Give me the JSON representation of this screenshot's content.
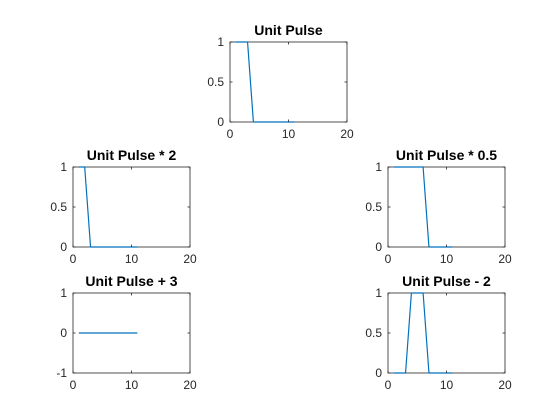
{
  "chart_data": [
    {
      "type": "line",
      "title": "Unit Pulse",
      "xlabel": "",
      "ylabel": "",
      "xlim": [
        0,
        20
      ],
      "ylim": [
        0,
        1
      ],
      "xticks": [
        0,
        10,
        20
      ],
      "xtick_labels": [
        "0",
        "10",
        "20"
      ],
      "yticks": [
        0,
        0.5,
        1
      ],
      "ytick_labels": [
        "0",
        "0.5",
        "1"
      ],
      "grid": false,
      "series": [
        {
          "x": [
            1,
            2,
            3,
            4,
            5,
            6,
            7,
            8,
            9,
            10,
            11
          ],
          "y": [
            1,
            1,
            1,
            0,
            0,
            0,
            0,
            0,
            0,
            0,
            0
          ]
        }
      ]
    },
    {
      "type": "line",
      "title": "Unit Pulse * 2",
      "xlabel": "",
      "ylabel": "",
      "xlim": [
        0,
        20
      ],
      "ylim": [
        0,
        1
      ],
      "xticks": [
        0,
        10,
        20
      ],
      "xtick_labels": [
        "0",
        "10",
        "20"
      ],
      "yticks": [
        0,
        0.5,
        1
      ],
      "ytick_labels": [
        "0",
        "0.5",
        "1"
      ],
      "grid": false,
      "series": [
        {
          "x": [
            1,
            2,
            3,
            4,
            5,
            6,
            7,
            8,
            9,
            10,
            11
          ],
          "y": [
            1,
            1,
            0,
            0,
            0,
            0,
            0,
            0,
            0,
            0,
            0
          ]
        }
      ]
    },
    {
      "type": "line",
      "title": "Unit Pulse * 0.5",
      "xlabel": "",
      "ylabel": "",
      "xlim": [
        0,
        20
      ],
      "ylim": [
        0,
        1
      ],
      "xticks": [
        0,
        10,
        20
      ],
      "xtick_labels": [
        "0",
        "10",
        "20"
      ],
      "yticks": [
        0,
        0.5,
        1
      ],
      "ytick_labels": [
        "0",
        "0.5",
        "1"
      ],
      "grid": false,
      "series": [
        {
          "x": [
            1,
            2,
            3,
            4,
            5,
            6,
            7,
            8,
            9,
            10,
            11
          ],
          "y": [
            1,
            1,
            1,
            1,
            1,
            1,
            0,
            0,
            0,
            0,
            0
          ]
        }
      ]
    },
    {
      "type": "line",
      "title": "Unit Pulse + 3",
      "xlabel": "",
      "ylabel": "",
      "xlim": [
        0,
        20
      ],
      "ylim": [
        -1,
        1
      ],
      "xticks": [
        0,
        10,
        20
      ],
      "xtick_labels": [
        "0",
        "10",
        "20"
      ],
      "yticks": [
        -1,
        0,
        1
      ],
      "ytick_labels": [
        "-1",
        "0",
        "1"
      ],
      "grid": false,
      "series": [
        {
          "x": [
            1,
            2,
            3,
            4,
            5,
            6,
            7,
            8,
            9,
            10,
            11
          ],
          "y": [
            0,
            0,
            0,
            0,
            0,
            0,
            0,
            0,
            0,
            0,
            0
          ]
        }
      ]
    },
    {
      "type": "line",
      "title": "Unit Pulse - 2",
      "xlabel": "",
      "ylabel": "",
      "xlim": [
        0,
        20
      ],
      "ylim": [
        0,
        1
      ],
      "xticks": [
        0,
        10,
        20
      ],
      "xtick_labels": [
        "0",
        "10",
        "20"
      ],
      "yticks": [
        0,
        0.5,
        1
      ],
      "ytick_labels": [
        "0",
        "0.5",
        "1"
      ],
      "grid": false,
      "series": [
        {
          "x": [
            1,
            2,
            3,
            4,
            5,
            6,
            7,
            8,
            9,
            10,
            11
          ],
          "y": [
            0,
            0,
            0,
            1,
            1,
            1,
            0,
            0,
            0,
            0,
            0
          ]
        }
      ]
    }
  ],
  "colors": {
    "series": "#0072BD",
    "axes": "#262626",
    "background": "#ffffff"
  }
}
